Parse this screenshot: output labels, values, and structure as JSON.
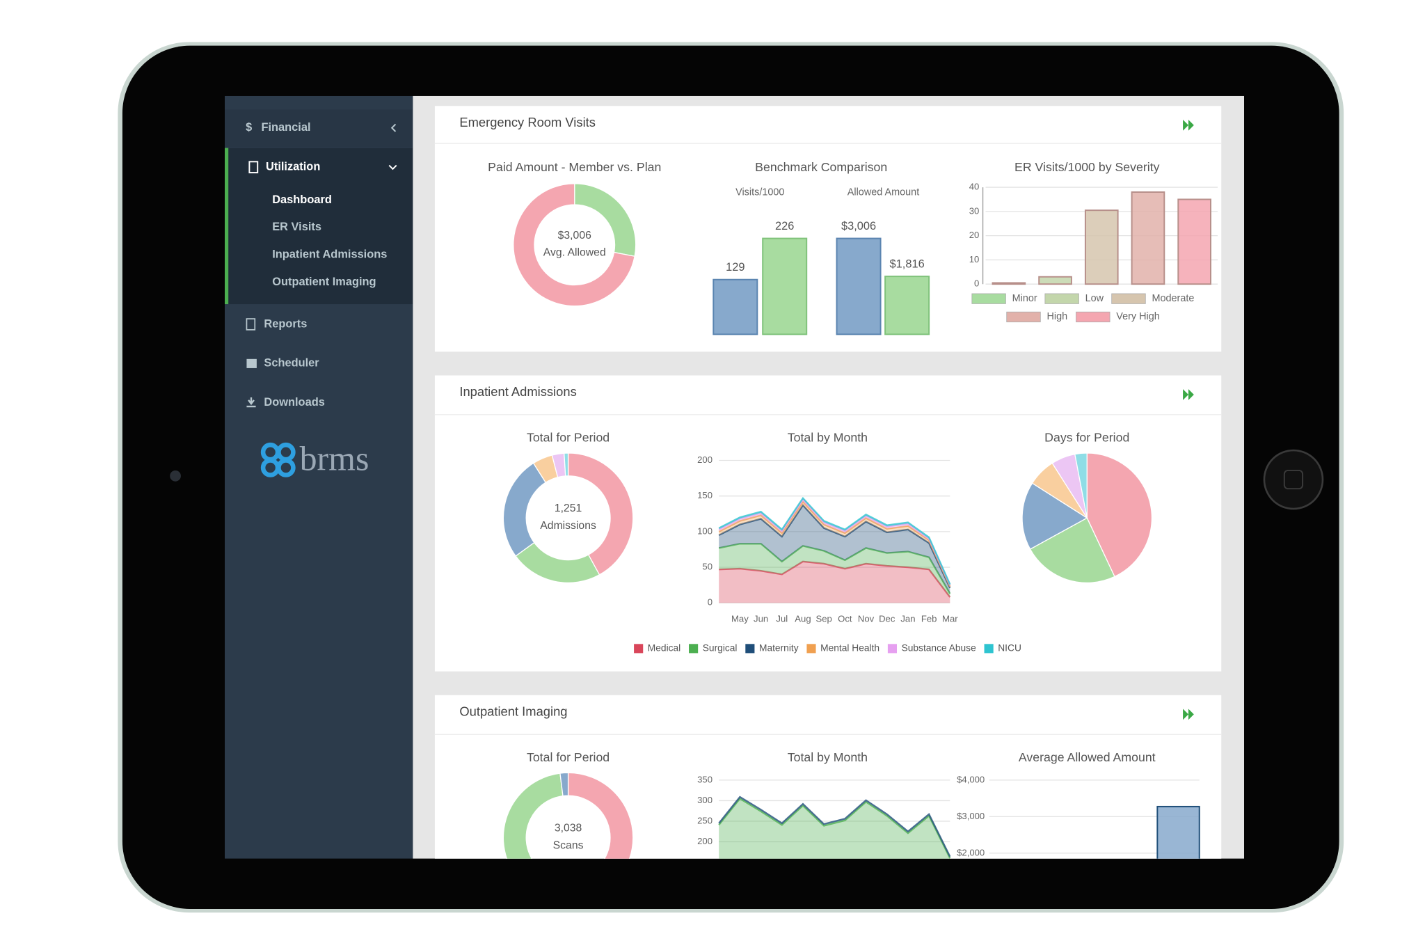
{
  "sidebar": {
    "menu": [
      "Financial",
      "Utilization",
      "Reports",
      "Scheduler",
      "Downloads"
    ],
    "submenu": [
      "Dashboard",
      "ER Visits",
      "Inpatient Admissions",
      "Outpatient Imaging"
    ],
    "logo": "brms"
  },
  "panels": [
    {
      "title": "Emergency Room Visits",
      "charts": [
        {
          "type": "donut",
          "title": "Paid Amount - Member vs. Plan",
          "values": [
            28,
            72
          ],
          "colors": [
            "#a8dca0",
            "#f4a6b0"
          ],
          "center": [
            "$3,006",
            "Avg. Allowed"
          ]
        },
        {
          "type": "grouped_bar",
          "title": "Benchmark Comparison",
          "colors": [
            "#87a9cc",
            "#a8dca0"
          ],
          "groups": [
            {
              "name": "Visits/1000",
              "values": [
                129,
                226
              ]
            },
            {
              "name": "Allowed Amount",
              "values": [
                3006,
                1816
              ],
              "value_labels": [
                "$3,006",
                "$1,816"
              ]
            }
          ]
        },
        {
          "type": "bar",
          "title": "ER Visits/1000 by Severity",
          "categories": [
            "Minor",
            "Low",
            "Moderate",
            "High",
            "Very High"
          ],
          "values": [
            0.5,
            3,
            30.5,
            38,
            35
          ],
          "colors": [
            "#a8dca0",
            "#c3d6ab",
            "#d6c5ae",
            "#e2b1aa",
            "#f4a6b0"
          ],
          "ylim": [
            0,
            40
          ],
          "yticks": [
            0,
            10,
            20,
            30,
            40
          ],
          "legend": true
        }
      ]
    },
    {
      "title": "Inpatient Admissions",
      "charts": [
        {
          "type": "donut",
          "title": "Total for Period",
          "values": [
            42,
            23,
            26,
            5,
            3,
            1
          ],
          "colors": [
            "#f4a6b0",
            "#a8dca0",
            "#87a9cc",
            "#f9cf9f",
            "#ecc6f4",
            "#8fdde6"
          ],
          "center": [
            "1,251",
            "Admissions"
          ]
        },
        {
          "type": "stacked_area",
          "title": "Total by Month",
          "categories": [
            null,
            "May",
            "Jun",
            "Jul",
            "Aug",
            "Sep",
            "Oct",
            "Nov",
            "Dec",
            "Jan",
            "Feb",
            "Mar"
          ],
          "ylim": [
            0,
            200
          ],
          "yticks": [
            0,
            50,
            100,
            150,
            200
          ],
          "legend": true,
          "series": [
            {
              "name": "Medical",
              "color": "#d9465a",
              "values": [
                47,
                48,
                45,
                40,
                58,
                55,
                48,
                55,
                52,
                50,
                47,
                8
              ]
            },
            {
              "name": "Surgical",
              "color": "#4caf50",
              "values": [
                30,
                35,
                38,
                18,
                22,
                18,
                12,
                22,
                18,
                22,
                17,
                5
              ]
            },
            {
              "name": "Maternity",
              "color": "#1f4e79",
              "values": [
                18,
                27,
                35,
                35,
                57,
                32,
                33,
                37,
                29,
                31,
                20,
                8
              ]
            },
            {
              "name": "Mental Health",
              "color": "#f0a050",
              "values": [
                5,
                5,
                5,
                5,
                5,
                5,
                5,
                5,
                5,
                5,
                4,
                2
              ]
            },
            {
              "name": "Substance Abuse",
              "color": "#e6a0f0",
              "values": [
                3,
                3,
                3,
                3,
                3,
                3,
                3,
                3,
                3,
                3,
                2,
                2
              ]
            },
            {
              "name": "NICU",
              "color": "#2ec4d0",
              "values": [
                2,
                2,
                2,
                2,
                2,
                2,
                2,
                2,
                2,
                2,
                2,
                1
              ]
            }
          ]
        },
        {
          "type": "pie",
          "title": "Days for Period",
          "values": [
            43,
            24,
            17,
            7,
            6,
            3
          ],
          "colors": [
            "#f4a6b0",
            "#a8dca0",
            "#87a9cc",
            "#f9cf9f",
            "#ecc6f4",
            "#8fdde6"
          ]
        }
      ]
    },
    {
      "title": "Outpatient Imaging",
      "charts": [
        {
          "type": "donut",
          "title": "Total for Period",
          "values": [
            50,
            48,
            2
          ],
          "colors": [
            "#f4a6b0",
            "#a8dca0",
            "#87a9cc"
          ],
          "center": [
            "3,038",
            "Scans"
          ]
        },
        {
          "type": "area",
          "title": "Total by Month",
          "ylim": [
            0,
            350
          ],
          "yticks": [
            200,
            250,
            300,
            350
          ],
          "series": [
            {
              "color": "#4caf50",
              "values": [
                241,
                305,
                274,
                241,
                288,
                239,
                252,
                297,
                263,
                221,
                263,
                160
              ]
            },
            {
              "color": "#1f4e79",
              "area": false,
              "values": [
                245,
                309,
                278,
                245,
                292,
                243,
                256,
                301,
                267,
                225,
                267,
                164
              ]
            }
          ]
        },
        {
          "type": "bar",
          "title": "Average Allowed Amount",
          "values": [
            null,
            null,
            null,
            null,
            3275
          ],
          "colors": [
            "#87a9cc",
            "#87a9cc",
            "#87a9cc",
            "#87a9cc",
            "#87a9cc"
          ],
          "ylim": [
            0,
            4000
          ],
          "yticks": [
            {
              "value": 2000,
              "label": "$2,000"
            },
            {
              "value": 3000,
              "label": "$3,000"
            },
            {
              "value": 4000,
              "label": "$4,000"
            }
          ],
          "grid": true
        }
      ]
    }
  ]
}
